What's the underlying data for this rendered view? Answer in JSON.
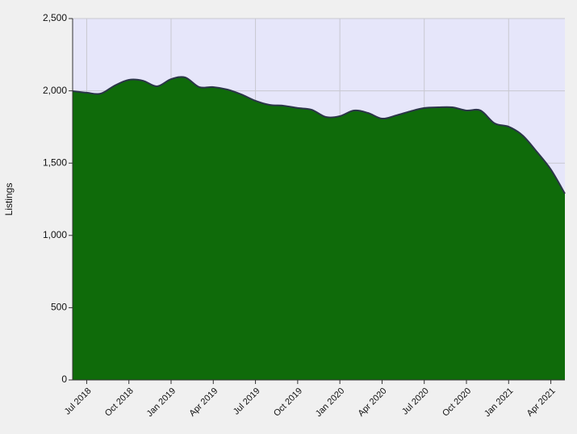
{
  "chart_data": {
    "type": "area",
    "y_label": "Listings",
    "categories": [
      null,
      "Jul 2018",
      null,
      null,
      "Oct 2018",
      null,
      null,
      "Jan 2019",
      null,
      null,
      "Apr 2019",
      null,
      null,
      "Jul 2019",
      null,
      null,
      "Oct 2019",
      null,
      null,
      "Jan 2020",
      null,
      null,
      "Apr 2020",
      null,
      null,
      "Jul 2020",
      null,
      null,
      "Oct 2020",
      null,
      null,
      "Jan 2021",
      null,
      null,
      "Apr 2021",
      null
    ],
    "values": [
      1998,
      1987,
      1981,
      2037,
      2076,
      2070,
      2031,
      2081,
      2093,
      2026,
      2026,
      2009,
      1975,
      1931,
      1903,
      1897,
      1881,
      1869,
      1819,
      1825,
      1864,
      1847,
      1808,
      1830,
      1858,
      1881,
      1886,
      1886,
      1864,
      1864,
      1775,
      1752,
      1691,
      1579,
      1456,
      1289
    ],
    "color": "#0f6b0a",
    "line_color": "#2b3548",
    "ylim": [
      0,
      2500
    ],
    "yticks": [
      0,
      500,
      {
        "value": 1000,
        "label": "1,000"
      },
      {
        "value": 1500,
        "label": "1,500"
      },
      {
        "value": 2000,
        "label": "2,000"
      },
      {
        "value": 2500,
        "label": "2,500"
      }
    ],
    "grid": true
  }
}
